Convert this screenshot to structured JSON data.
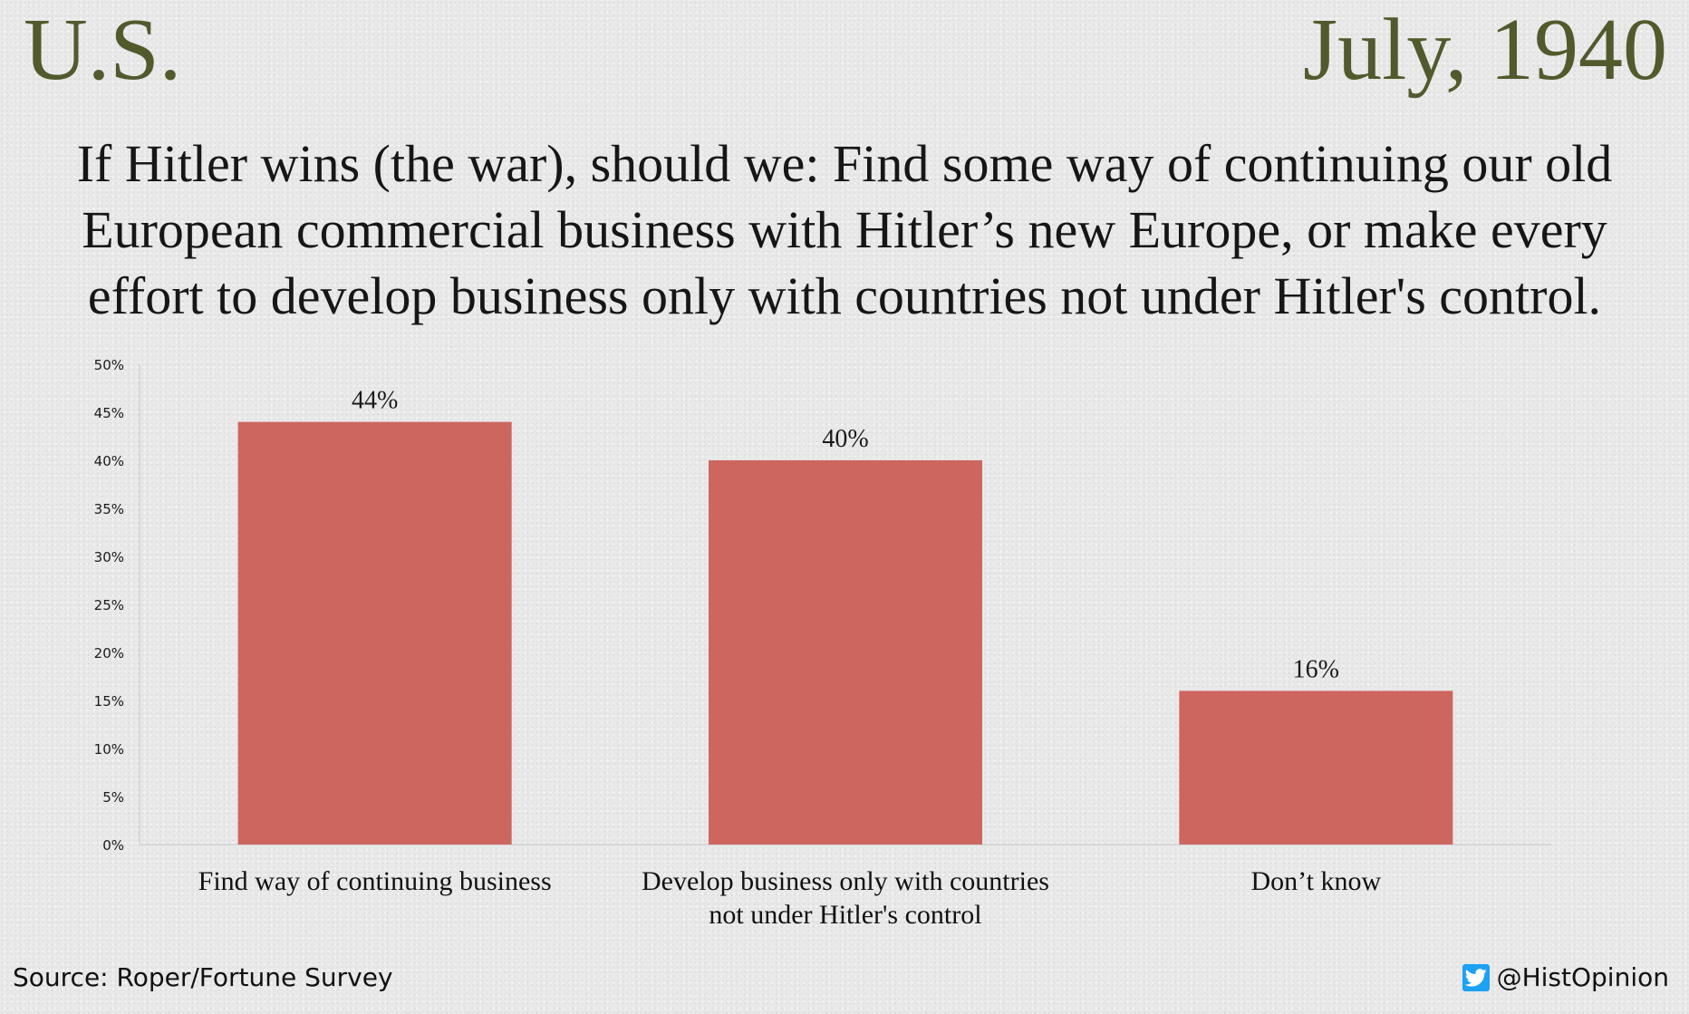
{
  "header": {
    "country": "U.S.",
    "date": "July, 1940"
  },
  "question": {
    "lines": [
      "If Hitler wins (the war), should we: Find some way of continuing our old",
      "European commercial business with Hitler’s new Europe, or make every",
      "effort to develop business only with countries not under Hitler's control."
    ]
  },
  "footer": {
    "source": "Source: Roper/Fortune Survey",
    "handle": "@HistOpinion",
    "handle_icon": "twitter-bird-icon"
  },
  "colors": {
    "bar": "#cd665f",
    "title": "#515a2c",
    "twitter": "#1da1f2"
  },
  "chart_data": {
    "type": "bar",
    "title": "",
    "xlabel": "",
    "ylabel": "",
    "categories": [
      [
        "Find way of continuing business"
      ],
      [
        "Develop business only with countries",
        "not under Hitler's control"
      ],
      [
        "Don’t know"
      ]
    ],
    "values": [
      44,
      40,
      16
    ],
    "data_labels": [
      "44%",
      "40%",
      "16%"
    ],
    "ylim": [
      0,
      50
    ],
    "yticks": [
      0,
      5,
      10,
      15,
      20,
      25,
      30,
      35,
      40,
      45,
      50
    ],
    "ytick_labels": [
      "0%",
      "5%",
      "10%",
      "15%",
      "20%",
      "25%",
      "30%",
      "35%",
      "40%",
      "45%",
      "50%"
    ],
    "grid": false,
    "legend": "none"
  }
}
